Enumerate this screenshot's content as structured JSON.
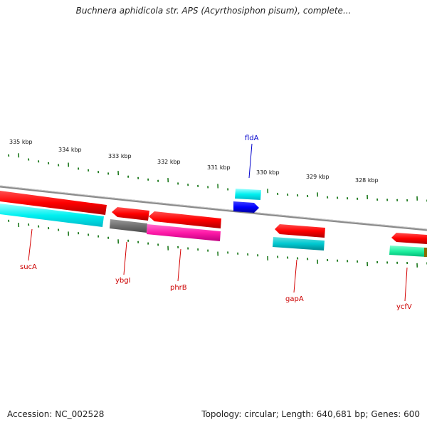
{
  "title": "Buchnera aphidicola str. APS (Acyrthosiphon pisum), complete...",
  "footer": {
    "accession": "Accession: NC_002528",
    "summary": "Topology: circular; Length: 640,681 bp; Genes: 600"
  },
  "scale_labels": [
    "335 kbp",
    "334 kbp",
    "333 kbp",
    "332 kbp",
    "331 kbp",
    "330 kbp",
    "329 kbp",
    "328 kbp"
  ],
  "genes": [
    {
      "name": "sucA",
      "color": "#cc0000"
    },
    {
      "name": "ybgI",
      "color": "#cc0000"
    },
    {
      "name": "phrB",
      "color": "#cc0000"
    },
    {
      "name": "fldA",
      "color": "#0000cc"
    },
    {
      "name": "gapA",
      "color": "#cc0000"
    },
    {
      "name": "ycfV",
      "color": "#cc0000"
    }
  ]
}
